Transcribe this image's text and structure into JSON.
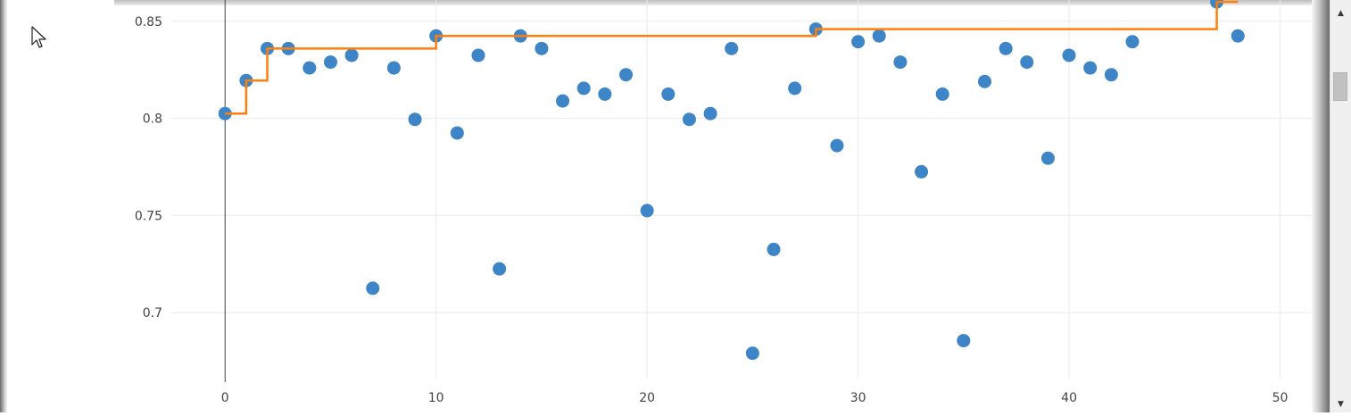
{
  "window": {
    "scroll_up_glyph": "▲",
    "scroll_down_glyph": "▼"
  },
  "chart_data": {
    "type": "scatter",
    "title": "",
    "xlabel": "",
    "ylabel": "",
    "xlim": [
      -5,
      51.5
    ],
    "ylim": [
      0.666,
      0.861
    ],
    "grid": true,
    "x_ticks": [
      0,
      10,
      20,
      30,
      40,
      50
    ],
    "x_tick_labels": [
      "0",
      "10",
      "20",
      "30",
      "40",
      "50"
    ],
    "y_ticks": [
      0.7,
      0.75,
      0.8,
      0.85
    ],
    "y_tick_labels": [
      "0.7",
      "0.75",
      "0.8",
      "0.85"
    ],
    "colors": {
      "points": "#3d85c6",
      "step": "#ff7f0e",
      "grid": "#ebebeb",
      "zero_line": "#444444"
    },
    "series": [
      {
        "type": "scatter",
        "x": [
          0,
          1,
          2,
          3,
          4,
          5,
          6,
          7,
          8,
          9,
          10,
          11,
          12,
          13,
          14,
          15,
          16,
          17,
          18,
          19,
          20,
          21,
          22,
          23,
          24,
          25,
          26,
          27,
          28,
          29,
          30,
          31,
          32,
          33,
          34,
          35,
          36,
          37,
          38,
          39,
          40,
          41,
          42,
          43,
          47,
          48
        ],
        "y": [
          0.8025,
          0.8195,
          0.836,
          0.836,
          0.826,
          0.829,
          0.8325,
          0.7125,
          0.826,
          0.7995,
          0.8425,
          0.7925,
          0.8325,
          0.7225,
          0.8425,
          0.836,
          0.809,
          0.8155,
          0.8125,
          0.8225,
          0.7525,
          0.8125,
          0.7995,
          0.8025,
          0.836,
          0.679,
          0.7325,
          0.8155,
          0.846,
          0.786,
          0.8395,
          0.8425,
          0.829,
          0.7725,
          0.8125,
          0.6855,
          0.819,
          0.836,
          0.829,
          0.7795,
          0.8325,
          0.826,
          0.8225,
          0.8395,
          0.86,
          0.8425
        ]
      },
      {
        "type": "step",
        "x": [
          0,
          1,
          2,
          10,
          28,
          47,
          48
        ],
        "y": [
          0.8025,
          0.8195,
          0.836,
          0.8425,
          0.846,
          0.86,
          0.86
        ]
      }
    ]
  }
}
